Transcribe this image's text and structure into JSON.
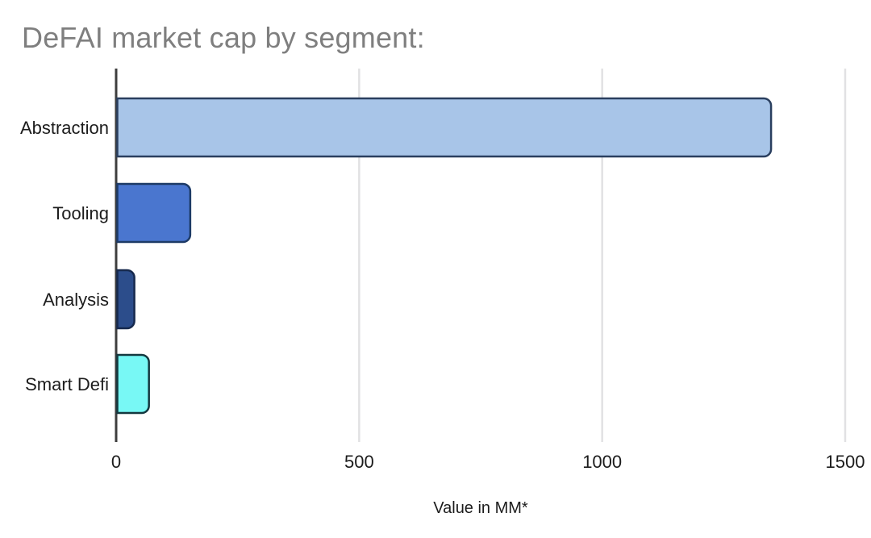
{
  "chart_data": {
    "type": "bar",
    "orientation": "horizontal",
    "title": "DeFAI market cap by segment:",
    "categories": [
      "Abstraction",
      "Tooling",
      "Analysis",
      "Smart Defi"
    ],
    "values": [
      1345,
      150,
      35,
      65
    ],
    "xlabel": "Value in MM*",
    "ylabel": "",
    "xlim": [
      0,
      1500
    ],
    "xticks": [
      0,
      500,
      1000,
      1500
    ],
    "grid": true,
    "legend": false,
    "bar_colors": [
      "#a8c5e8",
      "#4a76cf",
      "#2c4d8b",
      "#78f8f5"
    ],
    "bar_border_colors": [
      "#2a3f5f",
      "#1d3a66",
      "#16294d",
      "#14383f"
    ],
    "grid_color": "#e1e1e3",
    "axis_color": "#3d3d3d",
    "title_color": "#7f7f7f",
    "label_color": "#1c1c1c"
  }
}
